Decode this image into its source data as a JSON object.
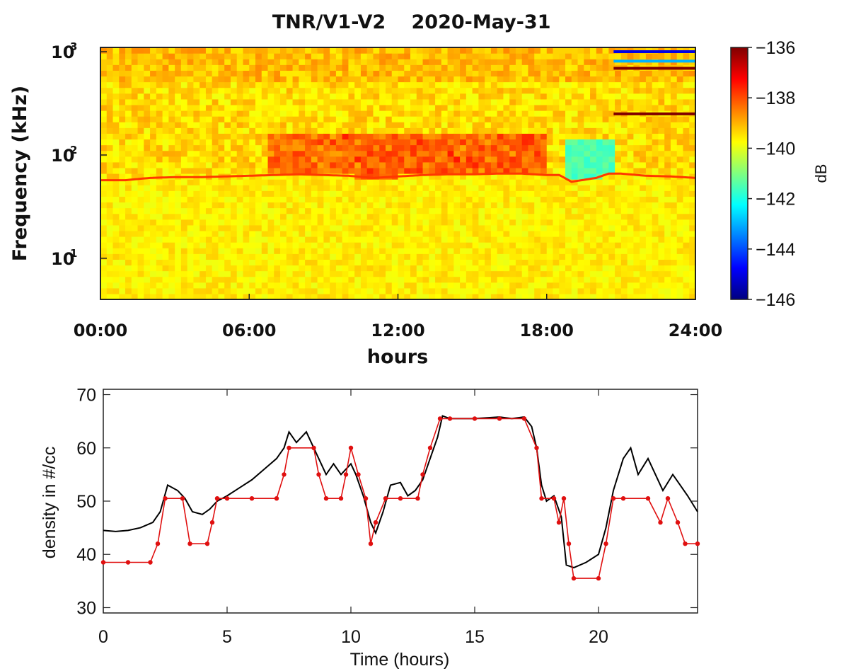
{
  "chart_data": [
    {
      "type": "heatmap",
      "title": "TNR/V1-V2",
      "subtitle": "2020-May-31",
      "xlabel": "hours",
      "ylabel": "Frequency (kHz)",
      "x_ticks": [
        "00:00",
        "06:00",
        "12:00",
        "18:00",
        "24:00"
      ],
      "x_range_hours": [
        0,
        24
      ],
      "y_scale": "log",
      "y_range_khz": [
        4,
        1100
      ],
      "y_ticks": [
        {
          "value": 10,
          "base": "10",
          "exp": "1"
        },
        {
          "value": 100,
          "base": "10",
          "exp": "2"
        },
        {
          "value": 1000,
          "base": "10",
          "exp": "3"
        }
      ],
      "colorbar": {
        "label": "dB",
        "range": [
          -146,
          -136
        ],
        "ticks": [
          "−136",
          "−138",
          "−140",
          "−142",
          "−144",
          "−146"
        ],
        "colormap": "jet"
      },
      "plasma_line_khz": [
        [
          0,
          57
        ],
        [
          1,
          57
        ],
        [
          2,
          60
        ],
        [
          3,
          61
        ],
        [
          4,
          61
        ],
        [
          5,
          62
        ],
        [
          6,
          63
        ],
        [
          7,
          64
        ],
        [
          8,
          65
        ],
        [
          9,
          64
        ],
        [
          10,
          63
        ],
        [
          11,
          60
        ],
        [
          12,
          62
        ],
        [
          13,
          64
        ],
        [
          14,
          65
        ],
        [
          15,
          65
        ],
        [
          16,
          66
        ],
        [
          17,
          66
        ],
        [
          18,
          64
        ],
        [
          18.5,
          64
        ],
        [
          19,
          55
        ],
        [
          20,
          60
        ],
        [
          20.5,
          66
        ],
        [
          21,
          66
        ],
        [
          22,
          63
        ],
        [
          23,
          62
        ],
        [
          24,
          60
        ]
      ],
      "annotation_bands_khz": [
        {
          "x": [
            20.7,
            24
          ],
          "freq": 1000,
          "level": -145
        },
        {
          "x": [
            20.7,
            24
          ],
          "freq": 810,
          "level": -143
        },
        {
          "x": [
            20.7,
            24
          ],
          "freq": 690,
          "level": -136
        },
        {
          "x": [
            20.7,
            24
          ],
          "freq": 250,
          "level": -136
        }
      ]
    },
    {
      "type": "line",
      "title": "",
      "xlabel": "Time (hours)",
      "ylabel": "density in #/cc",
      "xlim": [
        0,
        24
      ],
      "ylim": [
        29,
        71
      ],
      "x_ticks": [
        0,
        5,
        10,
        15,
        20
      ],
      "y_ticks": [
        30,
        40,
        50,
        60,
        70
      ],
      "colors": {
        "series_1": "#000000",
        "series_2": "#e01010"
      },
      "series": [
        {
          "name": "",
          "color": "#000000",
          "points": [
            [
              0,
              44.5
            ],
            [
              0.5,
              44.3
            ],
            [
              1,
              44.5
            ],
            [
              1.5,
              45
            ],
            [
              2,
              46
            ],
            [
              2.3,
              48
            ],
            [
              2.6,
              53
            ],
            [
              3,
              52
            ],
            [
              3.3,
              50.5
            ],
            [
              3.6,
              48
            ],
            [
              4,
              47.5
            ],
            [
              4.3,
              48.5
            ],
            [
              4.6,
              50
            ],
            [
              5,
              51
            ],
            [
              5.5,
              52.5
            ],
            [
              6,
              54
            ],
            [
              6.5,
              56
            ],
            [
              7,
              58
            ],
            [
              7.3,
              60
            ],
            [
              7.5,
              63
            ],
            [
              7.8,
              61
            ],
            [
              8.2,
              63
            ],
            [
              8.5,
              60
            ],
            [
              8.8,
              57
            ],
            [
              9,
              55
            ],
            [
              9.3,
              57
            ],
            [
              9.6,
              55
            ],
            [
              10,
              57
            ],
            [
              10.2,
              55
            ],
            [
              10.5,
              51
            ],
            [
              10.8,
              46
            ],
            [
              11,
              44
            ],
            [
              11.3,
              48
            ],
            [
              11.6,
              53
            ],
            [
              12,
              53.5
            ],
            [
              12.3,
              51
            ],
            [
              12.6,
              52
            ],
            [
              12.9,
              54
            ],
            [
              13.2,
              58
            ],
            [
              13.5,
              62
            ],
            [
              13.7,
              66
            ],
            [
              14,
              65.5
            ],
            [
              15,
              65.5
            ],
            [
              16,
              65.8
            ],
            [
              16.5,
              65.5
            ],
            [
              17,
              65.8
            ],
            [
              17.3,
              64
            ],
            [
              17.5,
              60
            ],
            [
              17.7,
              53
            ],
            [
              17.9,
              50
            ],
            [
              18.2,
              51
            ],
            [
              18.5,
              47
            ],
            [
              18.7,
              38
            ],
            [
              19,
              37.5
            ],
            [
              19.5,
              38.5
            ],
            [
              20,
              40
            ],
            [
              20.3,
              45
            ],
            [
              20.6,
              52
            ],
            [
              21,
              58
            ],
            [
              21.3,
              60
            ],
            [
              21.6,
              55
            ],
            [
              22,
              58
            ],
            [
              22.3,
              55
            ],
            [
              22.6,
              52
            ],
            [
              23,
              55
            ],
            [
              23.3,
              53
            ],
            [
              23.6,
              51
            ],
            [
              24,
              48
            ]
          ]
        },
        {
          "name": "",
          "color": "#e01010",
          "points": [
            [
              0,
              38.5
            ],
            [
              1,
              38.5
            ],
            [
              1.9,
              38.5
            ],
            [
              2.2,
              42
            ],
            [
              2.5,
              50.5
            ],
            [
              3.2,
              50.5
            ],
            [
              3.5,
              42
            ],
            [
              4.2,
              42
            ],
            [
              4.4,
              46
            ],
            [
              4.6,
              50.5
            ],
            [
              5,
              50.5
            ],
            [
              6,
              50.5
            ],
            [
              7,
              50.5
            ],
            [
              7.3,
              55
            ],
            [
              7.5,
              60
            ],
            [
              8.5,
              60
            ],
            [
              8.7,
              55
            ],
            [
              9,
              50.5
            ],
            [
              9.6,
              50.5
            ],
            [
              9.8,
              55
            ],
            [
              10,
              60
            ],
            [
              10.3,
              55
            ],
            [
              10.6,
              50.5
            ],
            [
              10.8,
              42
            ],
            [
              11,
              46
            ],
            [
              11.4,
              50.5
            ],
            [
              12,
              50.5
            ],
            [
              12.7,
              50.5
            ],
            [
              12.9,
              55
            ],
            [
              13.2,
              60
            ],
            [
              13.6,
              65.5
            ],
            [
              14,
              65.5
            ],
            [
              15,
              65.5
            ],
            [
              16,
              65.5
            ],
            [
              17,
              65.5
            ],
            [
              17.5,
              60
            ],
            [
              17.7,
              50.5
            ],
            [
              18.2,
              50.5
            ],
            [
              18.4,
              46
            ],
            [
              18.6,
              50.5
            ],
            [
              18.8,
              42
            ],
            [
              19,
              35.5
            ],
            [
              20,
              35.5
            ],
            [
              20.3,
              42
            ],
            [
              20.6,
              50.5
            ],
            [
              21,
              50.5
            ],
            [
              22,
              50.5
            ],
            [
              22.5,
              46
            ],
            [
              22.8,
              50.5
            ],
            [
              23.2,
              46
            ],
            [
              23.5,
              42
            ],
            [
              24,
              42
            ]
          ]
        }
      ]
    }
  ]
}
